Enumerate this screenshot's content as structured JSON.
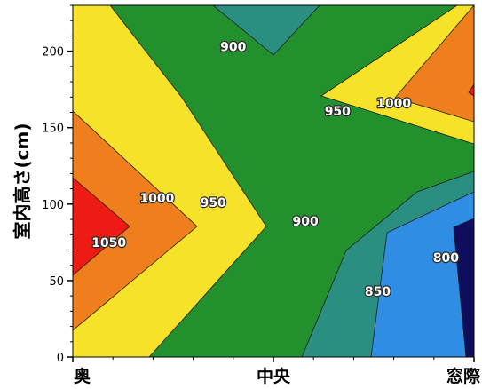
{
  "chart_data": {
    "type": "contour",
    "ylabel": "室内高さ(cm)",
    "x_categories": [
      "奥",
      "中央",
      "窓際"
    ],
    "ylim": [
      0,
      230
    ],
    "yticks": [
      0,
      50,
      100,
      150,
      200
    ],
    "levels": [
      800,
      850,
      900,
      950,
      1000,
      1050
    ],
    "level_colors": {
      "below_800": "#0f0d5e",
      "800_850": "#2f8de4",
      "850_900": "#2a8f80",
      "900_950": "#23902e",
      "950_1000": "#f7e22a",
      "1000_1050": "#ee7f1c",
      "above_1050": "#ee1a14"
    },
    "contour_labels": [
      {
        "text": "900",
        "x": 0.4,
        "y": 203
      },
      {
        "text": "1000",
        "x": 0.8,
        "y": 166
      },
      {
        "text": "950",
        "x": 0.66,
        "y": 161
      },
      {
        "text": "1000",
        "x": 0.21,
        "y": 104
      },
      {
        "text": "950",
        "x": 0.35,
        "y": 101
      },
      {
        "text": "900",
        "x": 0.58,
        "y": 89
      },
      {
        "text": "1050",
        "x": 0.09,
        "y": 75
      },
      {
        "text": "800",
        "x": 0.93,
        "y": 65
      },
      {
        "text": "850",
        "x": 0.76,
        "y": 43
      }
    ]
  }
}
